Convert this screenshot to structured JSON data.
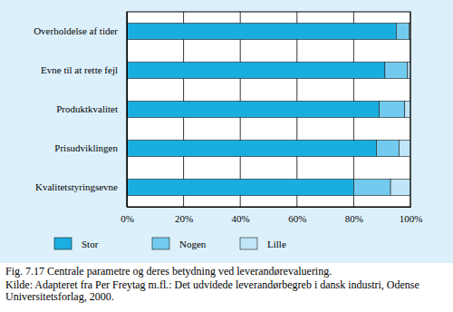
{
  "chart_data": {
    "type": "bar",
    "orientation": "horizontal",
    "stacked": true,
    "grid": true,
    "legend": "bottom",
    "title": "Fig. 7.17 Centrale parametre og deres betydning ved leverandørevaluering.",
    "subtitle": "Kilde: Adapteret fra Per Freytag m.fl.: Det udvidede leverandørbegreb i dansk industri, Odense Universitetsforlag, 2000.",
    "categories": [
      "Overholdelse af tider",
      "Evne til at rette fejl",
      "Produktkvalitet",
      "Prisudviklingen",
      "Kvalitetstyringsevne"
    ],
    "series": [
      {
        "name": "Stor",
        "color": "#1aaee0",
        "values": [
          95,
          91,
          89,
          88,
          80
        ]
      },
      {
        "name": "Nogen",
        "color": "#72cbef",
        "values": [
          4.5,
          8,
          9,
          8,
          13
        ]
      },
      {
        "name": "Lille",
        "color": "#bfe5f7",
        "values": [
          0.5,
          1,
          2,
          4,
          7
        ]
      }
    ],
    "xlim": [
      0,
      100
    ],
    "xticks": [
      {
        "value": 0,
        "label": "0%"
      },
      {
        "value": 20,
        "label": "20%"
      },
      {
        "value": 40,
        "label": "40%"
      },
      {
        "value": 60,
        "label": "60%"
      },
      {
        "value": 80,
        "label": "80%"
      },
      {
        "value": 100,
        "label": "100%"
      }
    ]
  }
}
